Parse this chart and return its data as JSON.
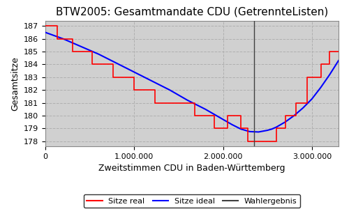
{
  "title": "BTW2005: Gesamtmandate CDU (GetrennteListen)",
  "xlabel": "Zweitstimmen CDU in Baden-Württemberg",
  "ylabel": "Gesamtsitze",
  "xlim": [
    0,
    3300000
  ],
  "ylim": [
    177.6,
    187.4
  ],
  "yticks": [
    178,
    179,
    180,
    181,
    182,
    183,
    184,
    185,
    186,
    187
  ],
  "xticks": [
    0,
    1000000,
    2000000,
    3000000
  ],
  "xticklabels": [
    "0",
    "1.000.000",
    "2.000.000",
    "3.000.000"
  ],
  "wahlergebnis_x": 2350000,
  "bg_color": "#d0d0d0",
  "grid_color": "#b0b0b0",
  "legend_labels": [
    "Sitze real",
    "Sitze ideal",
    "Wahlergebnis"
  ],
  "sitze_real_x": [
    0,
    130000,
    130000,
    310000,
    310000,
    530000,
    530000,
    760000,
    760000,
    1000000,
    1000000,
    1230000,
    1230000,
    1320000,
    1320000,
    1560000,
    1560000,
    1680000,
    1680000,
    1900000,
    1900000,
    2050000,
    2050000,
    2200000,
    2200000,
    2280000,
    2280000,
    2600000,
    2600000,
    2700000,
    2700000,
    2820000,
    2820000,
    2950000,
    2950000,
    3100000,
    3100000,
    3200000,
    3200000,
    3300000
  ],
  "sitze_real_y": [
    187,
    187,
    186,
    186,
    185,
    185,
    184,
    184,
    183,
    183,
    182,
    182,
    181,
    181,
    181,
    181,
    181,
    181,
    180,
    180,
    179,
    179,
    180,
    180,
    179,
    179,
    178,
    178,
    179,
    179,
    180,
    180,
    181,
    181,
    183,
    183,
    184,
    184,
    185,
    185
  ],
  "sitze_ideal_x": [
    0,
    200000,
    400000,
    600000,
    800000,
    1000000,
    1200000,
    1400000,
    1600000,
    1800000,
    2000000,
    2100000,
    2200000,
    2300000,
    2400000,
    2500000,
    2550000,
    2600000,
    2700000,
    2800000,
    2900000,
    3000000,
    3100000,
    3200000,
    3300000
  ],
  "sitze_ideal_y": [
    186.5,
    186.0,
    185.4,
    184.8,
    184.1,
    183.4,
    182.7,
    182.0,
    181.2,
    180.5,
    179.7,
    179.3,
    178.95,
    178.75,
    178.72,
    178.85,
    178.95,
    179.1,
    179.5,
    180.0,
    180.6,
    181.3,
    182.2,
    183.2,
    184.3
  ]
}
